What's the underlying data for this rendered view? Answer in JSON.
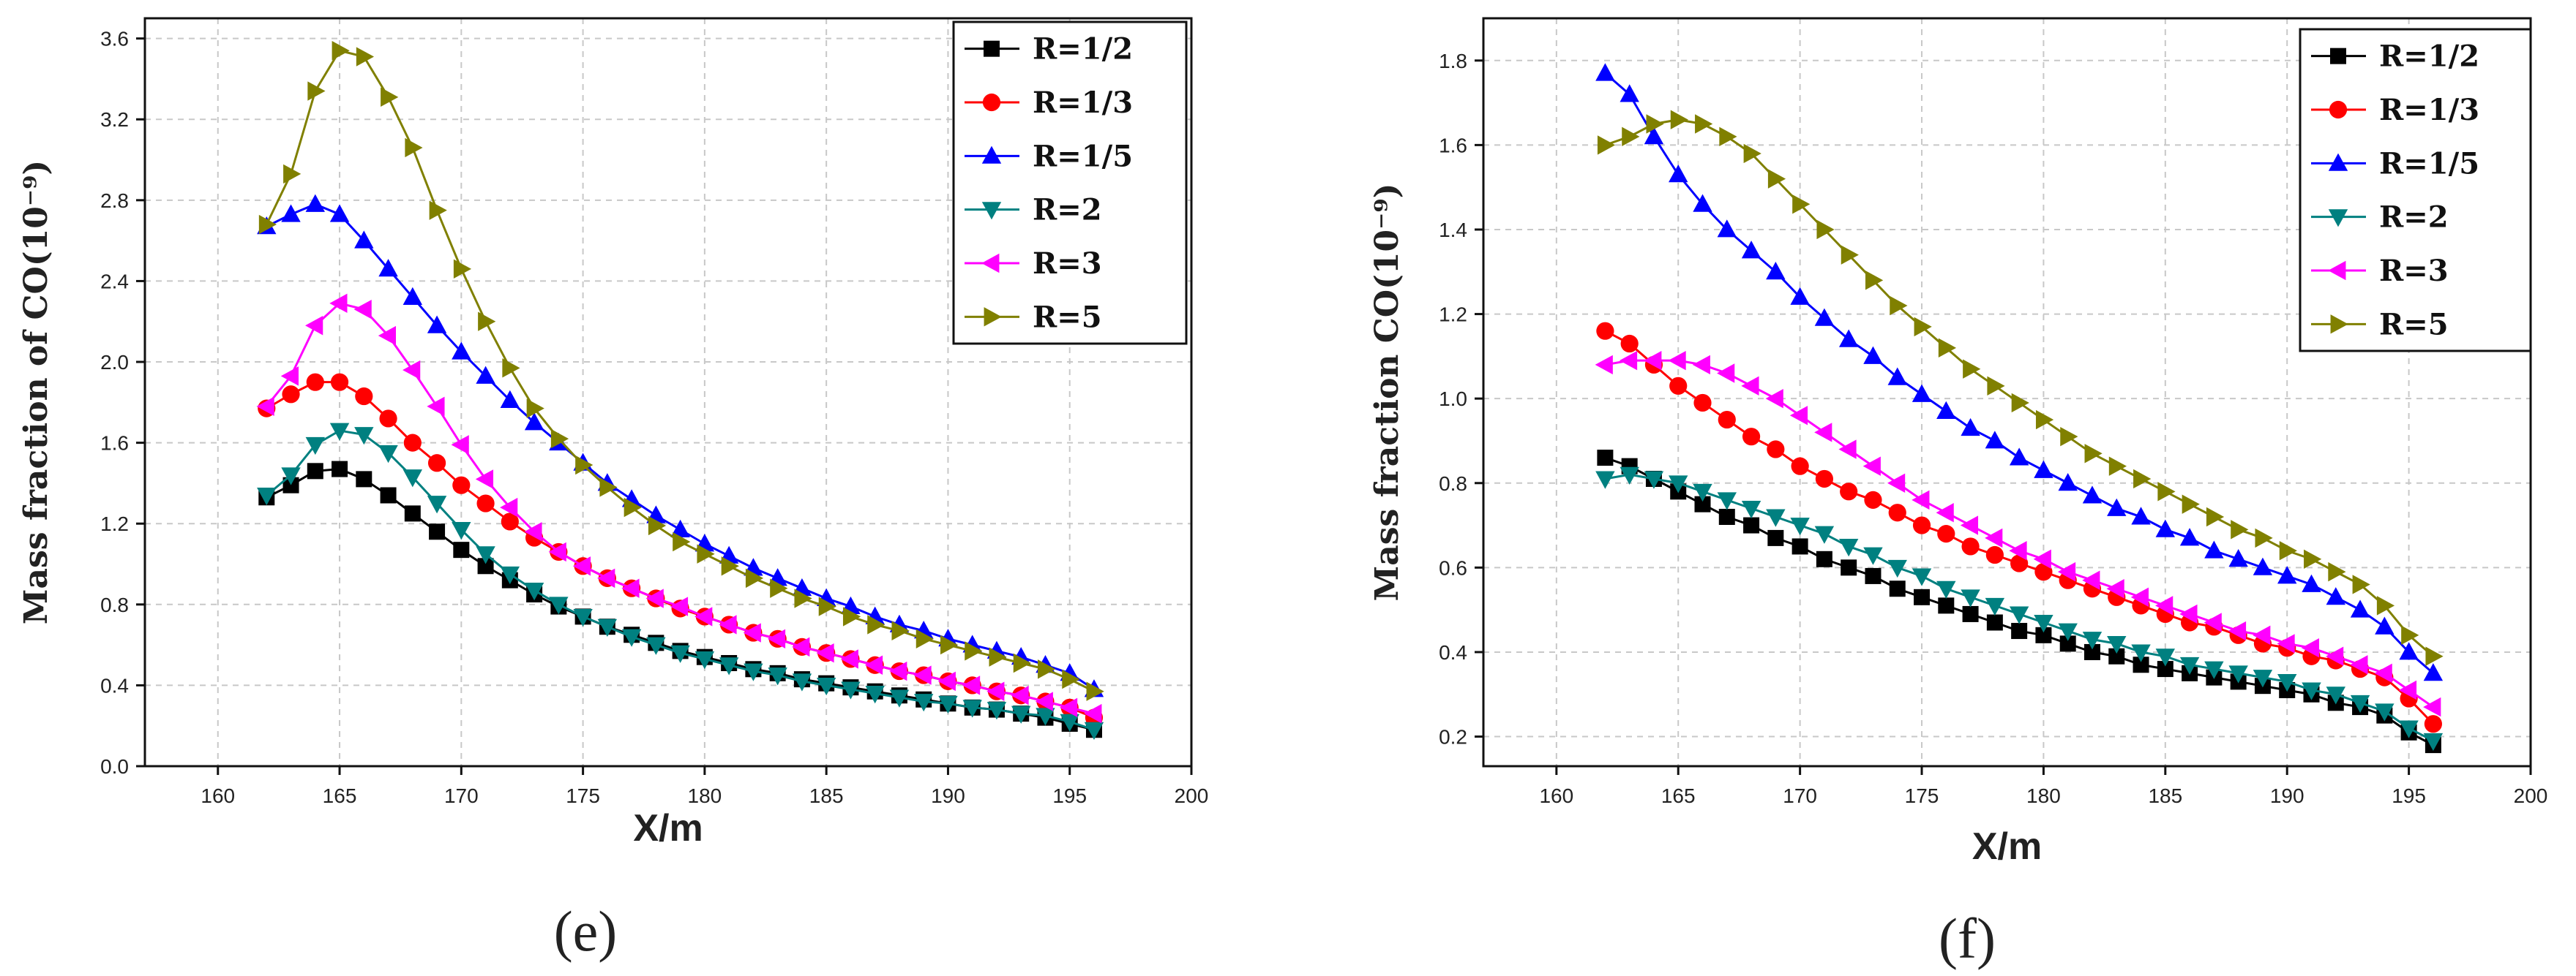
{
  "chart_data": [
    {
      "type": "line",
      "panel_label": "(e)",
      "xlabel": "X/m",
      "ylabel": "Mass fraction of CO(10⁻⁹)",
      "xlim": [
        157,
        200
      ],
      "ylim": [
        0,
        3.7
      ],
      "xticks": [
        160,
        165,
        170,
        175,
        180,
        185,
        190,
        195,
        200
      ],
      "yticks": [
        0.0,
        0.4,
        0.8,
        1.2,
        1.6,
        2.0,
        2.4,
        2.8,
        3.2,
        3.6
      ],
      "ytick_labels": [
        "0.0",
        "0.4",
        "0.8",
        "1.2",
        "1.6",
        "2.0",
        "2.4",
        "2.8",
        "3.2",
        "3.6"
      ],
      "grid": true,
      "legend_position": "top-right",
      "x": [
        162,
        163,
        164,
        165,
        166,
        167,
        168,
        169,
        170,
        171,
        172,
        173,
        174,
        175,
        176,
        177,
        178,
        179,
        180,
        181,
        182,
        183,
        184,
        185,
        186,
        187,
        188,
        189,
        190,
        191,
        192,
        193,
        194,
        195,
        196
      ],
      "series": [
        {
          "name": "R=1/2",
          "color": "#000000",
          "marker": "square",
          "values": [
            1.33,
            1.39,
            1.46,
            1.47,
            1.42,
            1.34,
            1.25,
            1.16,
            1.07,
            0.99,
            0.92,
            0.85,
            0.79,
            0.74,
            0.69,
            0.65,
            0.61,
            0.57,
            0.54,
            0.51,
            0.48,
            0.46,
            0.43,
            0.41,
            0.39,
            0.37,
            0.35,
            0.33,
            0.31,
            0.29,
            0.28,
            0.26,
            0.24,
            0.21,
            0.18
          ]
        },
        {
          "name": "R=1/3",
          "color": "#ff0000",
          "marker": "circle",
          "values": [
            1.77,
            1.84,
            1.9,
            1.9,
            1.83,
            1.72,
            1.6,
            1.5,
            1.39,
            1.3,
            1.21,
            1.13,
            1.06,
            0.99,
            0.93,
            0.88,
            0.83,
            0.78,
            0.74,
            0.7,
            0.66,
            0.63,
            0.59,
            0.56,
            0.53,
            0.5,
            0.47,
            0.45,
            0.42,
            0.4,
            0.37,
            0.35,
            0.32,
            0.29,
            0.24
          ]
        },
        {
          "name": "R=1/5",
          "color": "#0000ff",
          "marker": "triangle-up",
          "values": [
            2.67,
            2.73,
            2.78,
            2.73,
            2.6,
            2.46,
            2.32,
            2.18,
            2.05,
            1.93,
            1.81,
            1.7,
            1.6,
            1.5,
            1.4,
            1.32,
            1.24,
            1.17,
            1.1,
            1.04,
            0.98,
            0.93,
            0.88,
            0.83,
            0.79,
            0.74,
            0.7,
            0.67,
            0.63,
            0.6,
            0.57,
            0.54,
            0.5,
            0.46,
            0.38
          ]
        },
        {
          "name": "R=2",
          "color": "#008080",
          "marker": "triangle-down",
          "values": [
            1.34,
            1.44,
            1.59,
            1.66,
            1.64,
            1.55,
            1.43,
            1.3,
            1.17,
            1.05,
            0.95,
            0.87,
            0.8,
            0.74,
            0.69,
            0.64,
            0.6,
            0.56,
            0.53,
            0.5,
            0.47,
            0.45,
            0.42,
            0.4,
            0.38,
            0.36,
            0.34,
            0.32,
            0.31,
            0.29,
            0.28,
            0.26,
            0.25,
            0.22,
            0.18
          ]
        },
        {
          "name": "R=3",
          "color": "#ff00ff",
          "marker": "triangle-left",
          "values": [
            1.78,
            1.93,
            2.18,
            2.29,
            2.26,
            2.13,
            1.96,
            1.78,
            1.59,
            1.42,
            1.28,
            1.16,
            1.06,
            0.99,
            0.93,
            0.88,
            0.83,
            0.79,
            0.74,
            0.7,
            0.66,
            0.63,
            0.59,
            0.56,
            0.53,
            0.5,
            0.47,
            0.45,
            0.42,
            0.4,
            0.37,
            0.35,
            0.32,
            0.29,
            0.26
          ]
        },
        {
          "name": "R=5",
          "color": "#808000",
          "marker": "triangle-right",
          "values": [
            2.68,
            2.93,
            3.34,
            3.54,
            3.51,
            3.31,
            3.06,
            2.75,
            2.46,
            2.2,
            1.97,
            1.77,
            1.62,
            1.49,
            1.38,
            1.28,
            1.19,
            1.11,
            1.05,
            0.99,
            0.93,
            0.88,
            0.83,
            0.79,
            0.74,
            0.7,
            0.67,
            0.63,
            0.6,
            0.57,
            0.54,
            0.51,
            0.48,
            0.43,
            0.37
          ]
        }
      ]
    },
    {
      "type": "line",
      "panel_label": "(f)",
      "xlabel": "X/m",
      "ylabel": "Mass fraction CO(10⁻⁹)",
      "xlim": [
        157,
        200
      ],
      "ylim": [
        0.13,
        1.9
      ],
      "xticks": [
        160,
        165,
        170,
        175,
        180,
        185,
        190,
        195,
        200
      ],
      "yticks": [
        0.2,
        0.4,
        0.6,
        0.8,
        1.0,
        1.2,
        1.4,
        1.6,
        1.8
      ],
      "ytick_labels": [
        "0.2",
        "0.4",
        "0.6",
        "0.8",
        "1.0",
        "1.2",
        "1.4",
        "1.6",
        "1.8"
      ],
      "grid": true,
      "legend_position": "top-right",
      "x": [
        162,
        163,
        164,
        165,
        166,
        167,
        168,
        169,
        170,
        171,
        172,
        173,
        174,
        175,
        176,
        177,
        178,
        179,
        180,
        181,
        182,
        183,
        184,
        185,
        186,
        187,
        188,
        189,
        190,
        191,
        192,
        193,
        194,
        195,
        196
      ],
      "series": [
        {
          "name": "R=1/2",
          "color": "#000000",
          "marker": "square",
          "values": [
            0.86,
            0.84,
            0.81,
            0.78,
            0.75,
            0.72,
            0.7,
            0.67,
            0.65,
            0.62,
            0.6,
            0.58,
            0.55,
            0.53,
            0.51,
            0.49,
            0.47,
            0.45,
            0.44,
            0.42,
            0.4,
            0.39,
            0.37,
            0.36,
            0.35,
            0.34,
            0.33,
            0.32,
            0.31,
            0.3,
            0.28,
            0.27,
            0.25,
            0.21,
            0.18
          ]
        },
        {
          "name": "R=1/3",
          "color": "#ff0000",
          "marker": "circle",
          "values": [
            1.16,
            1.13,
            1.08,
            1.03,
            0.99,
            0.95,
            0.91,
            0.88,
            0.84,
            0.81,
            0.78,
            0.76,
            0.73,
            0.7,
            0.68,
            0.65,
            0.63,
            0.61,
            0.59,
            0.57,
            0.55,
            0.53,
            0.51,
            0.49,
            0.47,
            0.46,
            0.44,
            0.42,
            0.41,
            0.39,
            0.38,
            0.36,
            0.34,
            0.29,
            0.23
          ]
        },
        {
          "name": "R=1/5",
          "color": "#0000ff",
          "marker": "triangle-up",
          "values": [
            1.77,
            1.72,
            1.62,
            1.53,
            1.46,
            1.4,
            1.35,
            1.3,
            1.24,
            1.19,
            1.14,
            1.1,
            1.05,
            1.01,
            0.97,
            0.93,
            0.9,
            0.86,
            0.83,
            0.8,
            0.77,
            0.74,
            0.72,
            0.69,
            0.67,
            0.64,
            0.62,
            0.6,
            0.58,
            0.56,
            0.53,
            0.5,
            0.46,
            0.4,
            0.35
          ]
        },
        {
          "name": "R=2",
          "color": "#008080",
          "marker": "triangle-down",
          "values": [
            0.81,
            0.82,
            0.81,
            0.8,
            0.78,
            0.76,
            0.74,
            0.72,
            0.7,
            0.68,
            0.65,
            0.63,
            0.6,
            0.58,
            0.55,
            0.53,
            0.51,
            0.49,
            0.47,
            0.45,
            0.43,
            0.42,
            0.4,
            0.39,
            0.37,
            0.36,
            0.35,
            0.34,
            0.33,
            0.31,
            0.3,
            0.28,
            0.26,
            0.22,
            0.19
          ]
        },
        {
          "name": "R=3",
          "color": "#ff00ff",
          "marker": "triangle-left",
          "values": [
            1.08,
            1.09,
            1.09,
            1.09,
            1.08,
            1.06,
            1.03,
            1.0,
            0.96,
            0.92,
            0.88,
            0.84,
            0.8,
            0.76,
            0.73,
            0.7,
            0.67,
            0.64,
            0.62,
            0.59,
            0.57,
            0.55,
            0.53,
            0.51,
            0.49,
            0.47,
            0.45,
            0.44,
            0.42,
            0.41,
            0.39,
            0.37,
            0.35,
            0.31,
            0.27
          ]
        },
        {
          "name": "R=5",
          "color": "#808000",
          "marker": "triangle-right",
          "values": [
            1.6,
            1.62,
            1.65,
            1.66,
            1.65,
            1.62,
            1.58,
            1.52,
            1.46,
            1.4,
            1.34,
            1.28,
            1.22,
            1.17,
            1.12,
            1.07,
            1.03,
            0.99,
            0.95,
            0.91,
            0.87,
            0.84,
            0.81,
            0.78,
            0.75,
            0.72,
            0.69,
            0.67,
            0.64,
            0.62,
            0.59,
            0.56,
            0.51,
            0.44,
            0.39
          ]
        }
      ]
    }
  ]
}
